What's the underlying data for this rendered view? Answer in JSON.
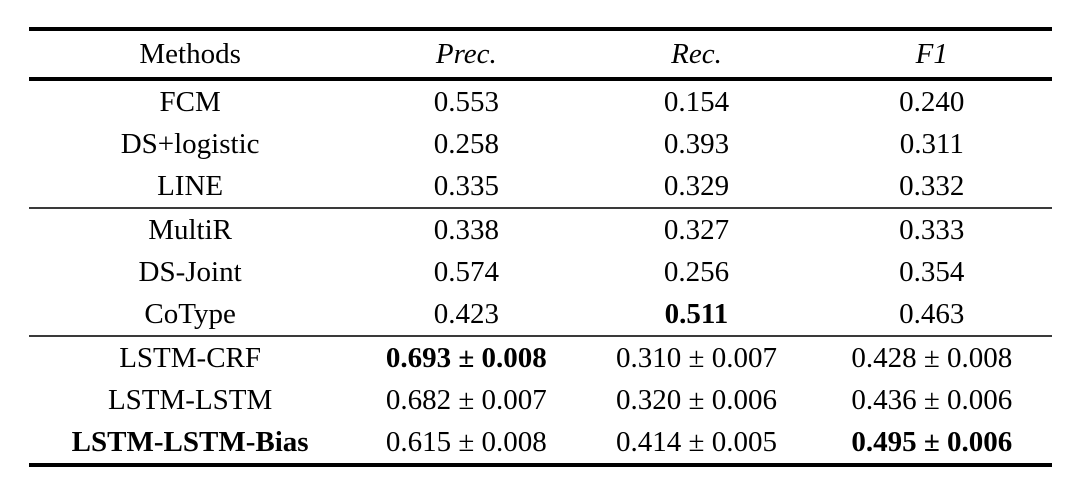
{
  "table": {
    "columns": [
      {
        "key": "methods",
        "label": "Methods",
        "italic": false
      },
      {
        "key": "prec",
        "label": "Prec.",
        "italic": true
      },
      {
        "key": "rec",
        "label": "Rec.",
        "italic": true
      },
      {
        "key": "f1",
        "label": "F1",
        "italic": true
      }
    ],
    "plus_minus_symbol": "±",
    "text_color": "#000000",
    "background_color": "#ffffff",
    "groups": [
      {
        "rows": [
          {
            "method": {
              "text": "FCM",
              "bold": false
            },
            "cells": [
              {
                "text": "0.553",
                "bold": false
              },
              {
                "text": "0.154",
                "bold": false
              },
              {
                "text": "0.240",
                "bold": false
              }
            ]
          },
          {
            "method": {
              "text": "DS+logistic",
              "bold": false
            },
            "cells": [
              {
                "text": "0.258",
                "bold": false
              },
              {
                "text": "0.393",
                "bold": false
              },
              {
                "text": "0.311",
                "bold": false
              }
            ]
          },
          {
            "method": {
              "text": "LINE",
              "bold": false
            },
            "cells": [
              {
                "text": "0.335",
                "bold": false
              },
              {
                "text": "0.329",
                "bold": false
              },
              {
                "text": "0.332",
                "bold": false
              }
            ]
          }
        ]
      },
      {
        "rows": [
          {
            "method": {
              "text": "MultiR",
              "bold": false
            },
            "cells": [
              {
                "text": "0.338",
                "bold": false
              },
              {
                "text": "0.327",
                "bold": false
              },
              {
                "text": "0.333",
                "bold": false
              }
            ]
          },
          {
            "method": {
              "text": "DS-Joint",
              "bold": false
            },
            "cells": [
              {
                "text": "0.574",
                "bold": false
              },
              {
                "text": "0.256",
                "bold": false
              },
              {
                "text": "0.354",
                "bold": false
              }
            ]
          },
          {
            "method": {
              "text": "CoType",
              "bold": false
            },
            "cells": [
              {
                "text": "0.423",
                "bold": false
              },
              {
                "text": "0.511",
                "bold": true
              },
              {
                "text": "0.463",
                "bold": false
              }
            ]
          }
        ]
      },
      {
        "rows": [
          {
            "method": {
              "text": "LSTM-CRF",
              "bold": false
            },
            "cells": [
              {
                "text": "0.693 ± 0.008",
                "bold": true
              },
              {
                "text": "0.310 ± 0.007",
                "bold": false
              },
              {
                "text": "0.428 ± 0.008",
                "bold": false
              }
            ]
          },
          {
            "method": {
              "text": "LSTM-LSTM",
              "bold": false
            },
            "cells": [
              {
                "text": "0.682 ± 0.007",
                "bold": false
              },
              {
                "text": "0.320 ± 0.006",
                "bold": false
              },
              {
                "text": "0.436 ± 0.006",
                "bold": false
              }
            ]
          },
          {
            "method": {
              "text": "LSTM-LSTM-Bias",
              "bold": true
            },
            "cells": [
              {
                "text": "0.615 ± 0.008",
                "bold": false
              },
              {
                "text": "0.414 ± 0.005",
                "bold": false
              },
              {
                "text": "0.495 ± 0.006",
                "bold": true
              }
            ]
          }
        ]
      }
    ]
  }
}
